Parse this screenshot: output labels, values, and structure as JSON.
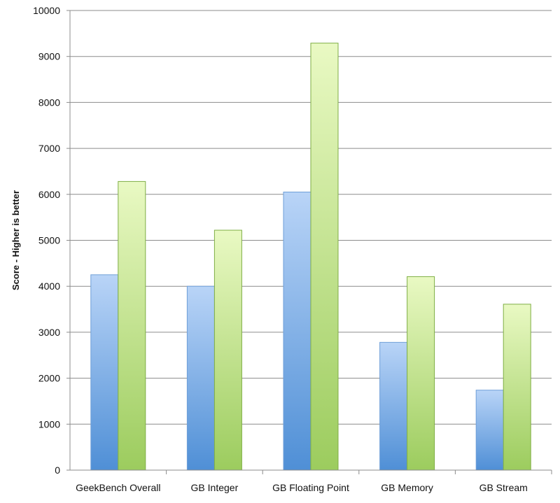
{
  "chart_data": {
    "type": "bar",
    "title": "",
    "xlabel": "",
    "ylabel": "Score - Higher is better",
    "ylim": [
      0,
      10000
    ],
    "yticks": [
      0,
      1000,
      2000,
      3000,
      4000,
      5000,
      6000,
      7000,
      8000,
      9000,
      10000
    ],
    "grid": true,
    "legend": "none",
    "categories": [
      "GeekBench Overall",
      "GB Integer",
      "GB Floating Point",
      "GB Memory",
      "GB Stream"
    ],
    "series": [
      {
        "values": [
          4250,
          4000,
          6050,
          2780,
          1740
        ],
        "color_top": "#b9d4f7",
        "color_bottom": "#4f8fd6"
      },
      {
        "values": [
          6280,
          5220,
          9290,
          4210,
          3610
        ],
        "color_top": "#e9f9c3",
        "color_bottom": "#9ccc5e"
      }
    ]
  }
}
